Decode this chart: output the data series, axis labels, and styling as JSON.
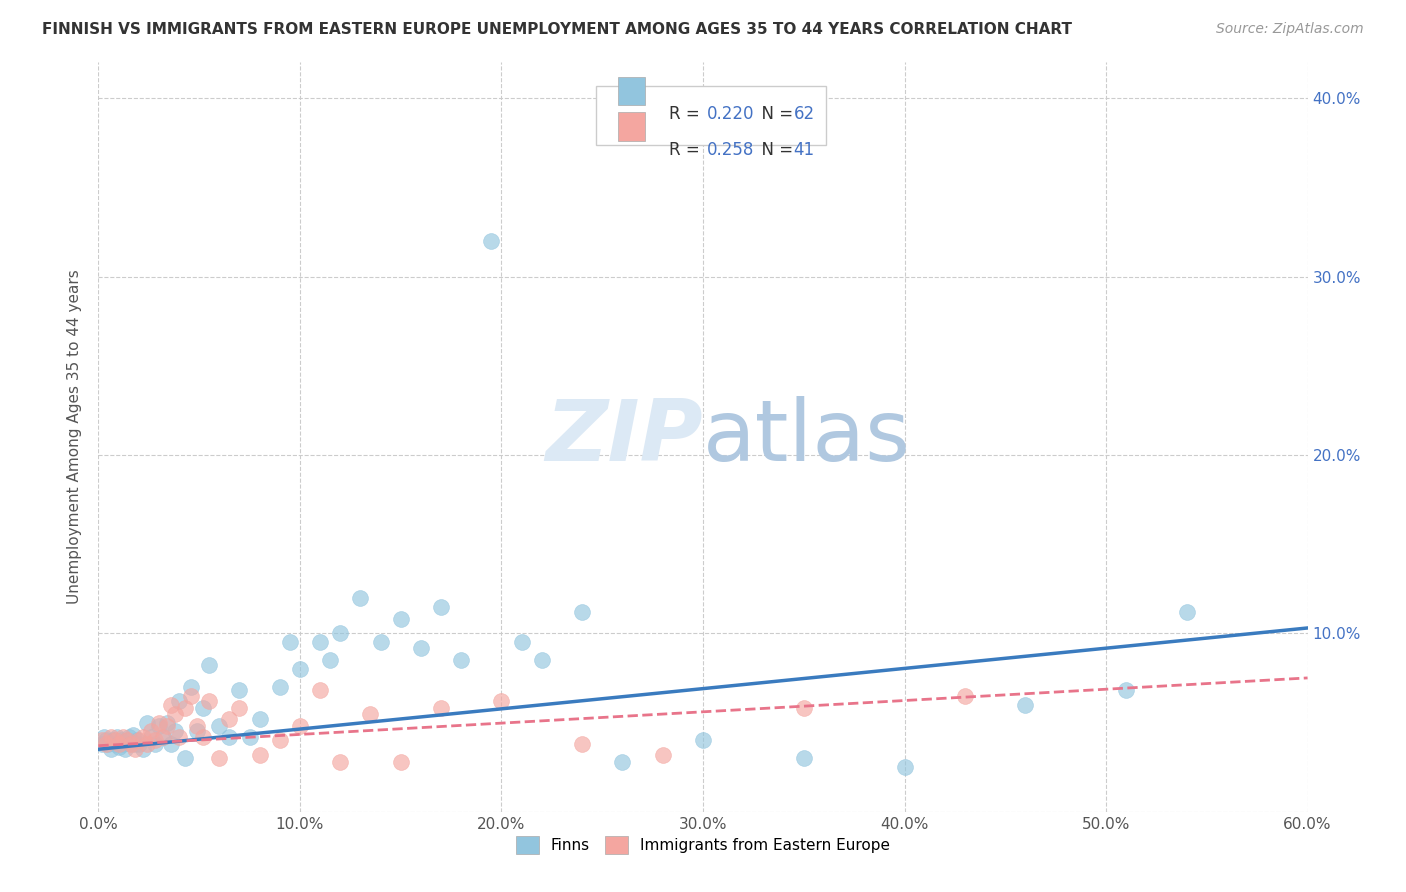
{
  "title": "FINNISH VS IMMIGRANTS FROM EASTERN EUROPE UNEMPLOYMENT AMONG AGES 35 TO 44 YEARS CORRELATION CHART",
  "source": "Source: ZipAtlas.com",
  "ylabel": "Unemployment Among Ages 35 to 44 years",
  "xlim": [
    0.0,
    0.6
  ],
  "ylim": [
    0.0,
    0.42
  ],
  "xticks": [
    0.0,
    0.1,
    0.2,
    0.3,
    0.4,
    0.5,
    0.6
  ],
  "yticks": [
    0.0,
    0.1,
    0.2,
    0.3,
    0.4
  ],
  "ytick_labels_right": [
    "",
    "10.0%",
    "20.0%",
    "30.0%",
    "40.0%"
  ],
  "xtick_labels": [
    "0.0%",
    "10.0%",
    "20.0%",
    "30.0%",
    "40.0%",
    "50.0%",
    "60.0%"
  ],
  "finns_color": "#92c5de",
  "immigrants_color": "#f4a6a0",
  "finns_line_color": "#3a7bbf",
  "immigrants_line_color": "#e8748a",
  "background_color": "#ffffff",
  "grid_color": "#cccccc",
  "watermark_color": "#dce9f5",
  "legend_R1": "R = 0.220",
  "legend_N1": "N = 62",
  "legend_R2": "R = 0.258",
  "legend_N2": "N = 41",
  "finns_line_start": 0.035,
  "finns_line_end": 0.103,
  "immigrants_line_start": 0.037,
  "immigrants_line_end": 0.075,
  "finns_x": [
    0.002,
    0.003,
    0.004,
    0.005,
    0.006,
    0.007,
    0.008,
    0.009,
    0.01,
    0.011,
    0.012,
    0.013,
    0.014,
    0.015,
    0.016,
    0.017,
    0.018,
    0.019,
    0.02,
    0.022,
    0.024,
    0.026,
    0.028,
    0.03,
    0.032,
    0.034,
    0.036,
    0.038,
    0.04,
    0.043,
    0.046,
    0.049,
    0.052,
    0.055,
    0.06,
    0.065,
    0.07,
    0.075,
    0.08,
    0.09,
    0.095,
    0.1,
    0.11,
    0.115,
    0.12,
    0.13,
    0.14,
    0.15,
    0.16,
    0.17,
    0.18,
    0.195,
    0.21,
    0.22,
    0.24,
    0.26,
    0.3,
    0.35,
    0.4,
    0.46,
    0.51,
    0.54
  ],
  "finns_y": [
    0.038,
    0.042,
    0.04,
    0.038,
    0.035,
    0.04,
    0.038,
    0.042,
    0.036,
    0.04,
    0.038,
    0.035,
    0.04,
    0.042,
    0.038,
    0.043,
    0.038,
    0.04,
    0.038,
    0.035,
    0.05,
    0.042,
    0.038,
    0.048,
    0.042,
    0.05,
    0.038,
    0.045,
    0.062,
    0.03,
    0.07,
    0.045,
    0.058,
    0.082,
    0.048,
    0.042,
    0.068,
    0.042,
    0.052,
    0.07,
    0.095,
    0.08,
    0.095,
    0.085,
    0.1,
    0.12,
    0.095,
    0.108,
    0.092,
    0.115,
    0.085,
    0.32,
    0.095,
    0.085,
    0.112,
    0.028,
    0.04,
    0.03,
    0.025,
    0.06,
    0.068,
    0.112
  ],
  "immigrants_x": [
    0.002,
    0.004,
    0.006,
    0.008,
    0.01,
    0.012,
    0.014,
    0.016,
    0.018,
    0.02,
    0.022,
    0.024,
    0.026,
    0.028,
    0.03,
    0.032,
    0.034,
    0.036,
    0.038,
    0.04,
    0.043,
    0.046,
    0.049,
    0.052,
    0.055,
    0.06,
    0.065,
    0.07,
    0.08,
    0.09,
    0.1,
    0.11,
    0.12,
    0.135,
    0.15,
    0.17,
    0.2,
    0.24,
    0.28,
    0.35,
    0.43
  ],
  "immigrants_y": [
    0.04,
    0.038,
    0.042,
    0.04,
    0.038,
    0.042,
    0.04,
    0.038,
    0.035,
    0.04,
    0.042,
    0.038,
    0.045,
    0.04,
    0.05,
    0.042,
    0.048,
    0.06,
    0.055,
    0.042,
    0.058,
    0.065,
    0.048,
    0.042,
    0.062,
    0.03,
    0.052,
    0.058,
    0.032,
    0.04,
    0.048,
    0.068,
    0.028,
    0.055,
    0.028,
    0.058,
    0.062,
    0.038,
    0.032,
    0.058,
    0.065
  ]
}
